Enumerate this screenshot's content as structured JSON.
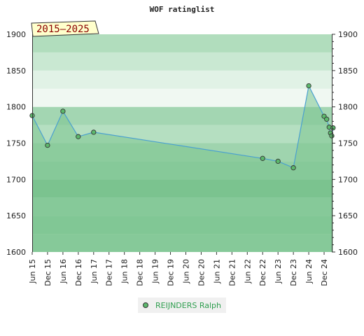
{
  "chart_data": {
    "type": "area",
    "title": "WOF ratinglist",
    "badge": "2015—2025",
    "ylim": [
      1600,
      1900
    ],
    "yticks": [
      1600,
      1650,
      1700,
      1750,
      1800,
      1850,
      1900
    ],
    "xlim": [
      "Jun 15",
      "Mar 25"
    ],
    "xticks": [
      "Jun 15",
      "Dec 15",
      "Jun 16",
      "Dec 16",
      "Jun 17",
      "Dec 17",
      "Jun 18",
      "Dec 18",
      "Jun 19",
      "Dec 19",
      "Jun 20",
      "Dec 20",
      "Jun 21",
      "Dec 21",
      "Jun 22",
      "Dec 22",
      "Jun 23",
      "Dec 23",
      "Jun 24",
      "Dec 24"
    ],
    "bands": [
      {
        "from": 1600,
        "to": 1625,
        "color": "#93cfa4"
      },
      {
        "from": 1625,
        "to": 1650,
        "color": "#88ca9b"
      },
      {
        "from": 1650,
        "to": 1675,
        "color": "#93cfa4"
      },
      {
        "from": 1675,
        "to": 1700,
        "color": "#7ac18e"
      },
      {
        "from": 1700,
        "to": 1725,
        "color": "#93cfa4"
      },
      {
        "from": 1725,
        "to": 1750,
        "color": "#9fd4ae"
      },
      {
        "from": 1750,
        "to": 1775,
        "color": "#b5dfc1"
      },
      {
        "from": 1775,
        "to": 1800,
        "color": "#a3d6b2"
      },
      {
        "from": 1800,
        "to": 1825,
        "color": "#f0f8f2"
      },
      {
        "from": 1825,
        "to": 1850,
        "color": "#e1f2e6"
      },
      {
        "from": 1850,
        "to": 1875,
        "color": "#c9e8d2"
      },
      {
        "from": 1875,
        "to": 1900,
        "color": "#b1ddbd"
      }
    ],
    "series": [
      {
        "name": "REIJNDERS Ralph",
        "color": "#4aa0d0",
        "marker_color": "#5cb86c",
        "area_color": "#7cc48f",
        "x": [
          "Jun 15",
          "Dec 15",
          "Jun 16",
          "Dec 16",
          "Jun 17",
          "Dec 22",
          "Jun 23",
          "Dec 23",
          "Jun 24",
          "Dec 24",
          "Jan 25",
          "Feb 25",
          "Feb 25",
          "Mar 25",
          "Mar 25"
        ],
        "values": [
          1788,
          1747,
          1794,
          1759,
          1765,
          1729,
          1725,
          1716,
          1829,
          1787,
          1783,
          1772,
          1764,
          1760,
          1771
        ]
      }
    ]
  },
  "legend": {
    "label": "REIJNDERS Ralph"
  }
}
